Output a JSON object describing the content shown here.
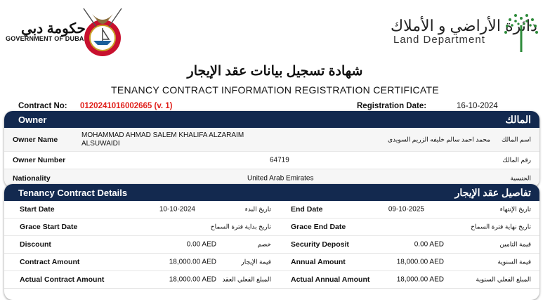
{
  "header": {
    "gov_ar": "حكومة دبي",
    "gov_en": "GOVERNMENT OF DUBAI",
    "ld_ar": "دائرة الأراضي و الأملاك",
    "ld_en": "Land Department",
    "title_ar": "شهادة تسجيل بيانات عقد الإيجار",
    "title_en": "TENANCY CONTRACT INFORMATION REGISTRATION CERTIFICATE"
  },
  "meta": {
    "contract_no_label": "Contract No:",
    "contract_no": "0120241016002665 (v. 1)",
    "contract_no_color": "#e0201b",
    "reg_date_label": "Registration Date:",
    "reg_date": "16-10-2024"
  },
  "owner": {
    "title_en": "Owner",
    "title_ar": "المالك",
    "rows": [
      {
        "label": "Owner Name",
        "value": "MOHAMMAD AHMAD SALEM KHALIFA ALZARAIM ALSUWAIDI",
        "value_ar": "محمد احمد سالم خليفه الزريم السويدى",
        "label_ar": "اسم المالك"
      },
      {
        "label": "Owner Number",
        "value": "64719",
        "label_ar": "رقم المالك"
      },
      {
        "label": "Nationality",
        "value": "United Arab Emirates",
        "label_ar": "الجنسية"
      }
    ]
  },
  "contract": {
    "title_en": "Tenancy Contract Details",
    "title_ar": "تفاصيل عقد الإيجار",
    "rows": [
      {
        "l1": "Start Date",
        "v1": "10-10-2024",
        "a1": "تاريخ البدء",
        "l2": "End Date",
        "v2": "09-10-2025",
        "a2": "تاريخ الإنتهاء"
      },
      {
        "l1": "Grace Start Date",
        "v1": "",
        "a1": "تاريخ بداية فترة السماح",
        "l2": "Grace End Date",
        "v2": "",
        "a2": "تاريخ نهاية فترة السماح"
      },
      {
        "l1": "Discount",
        "v1": "0.00 AED",
        "a1": "خصم",
        "l2": "Security Deposit",
        "v2": "0.00 AED",
        "a2": "قيمة التامين"
      },
      {
        "l1": "Contract Amount",
        "v1": "18,000.00 AED",
        "a1": "قيمة الإيجار",
        "l2": "Annual Amount",
        "v2": "18,000.00 AED",
        "a2": "قيمة السنوية"
      },
      {
        "l1": "Actual Contract Amount",
        "v1": "18,000.00 AED",
        "a1": "المبلغ الفعلي العقد",
        "l2": "Actual Annual Amount",
        "v2": "18,000.00 AED",
        "a2": "المبلغ الفعلي السنوية"
      }
    ]
  }
}
